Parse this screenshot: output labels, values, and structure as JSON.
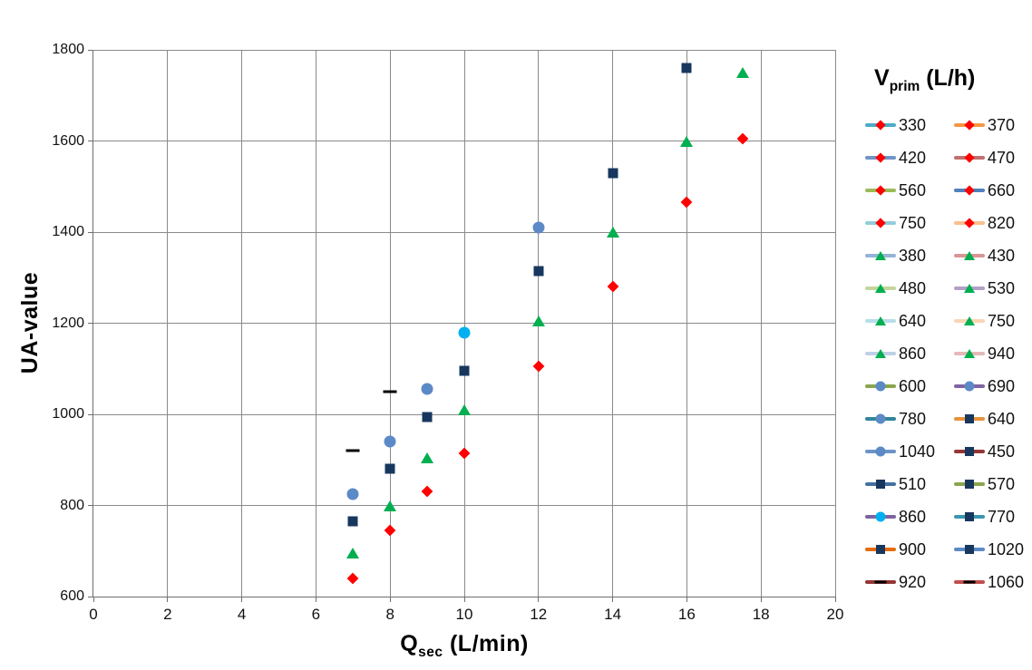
{
  "chart_data": {
    "type": "scatter",
    "title": "",
    "xlabel": "Qsec (L/min)",
    "xlabel_parts": {
      "base": "Q",
      "sub": "sec",
      "rest": " (L/min)"
    },
    "ylabel": "UA-value",
    "legend_title": "Vprim (L/h)",
    "legend_title_parts": {
      "base": "V",
      "sub": "prim",
      "rest": " (L/h)"
    },
    "xlim": [
      0,
      20
    ],
    "ylim": [
      600,
      1800
    ],
    "x_ticks": [
      0,
      2,
      4,
      6,
      8,
      10,
      12,
      14,
      16,
      18,
      20
    ],
    "y_ticks": [
      600,
      800,
      1000,
      1200,
      1400,
      1600,
      1800
    ],
    "grid": true,
    "legend_position": "right",
    "marker_colors": {
      "diamond": "#FE0000",
      "triangle": "#00AF50",
      "circle": "#5B8AC6",
      "circle_cyan": "#00B0F0",
      "square": "#17375E",
      "dash": "#000000"
    },
    "series": [
      {
        "name": "red-diamonds",
        "marker": "diamond",
        "color": "#FE0000",
        "points": [
          [
            7,
            640
          ],
          [
            8,
            745
          ],
          [
            9,
            830
          ],
          [
            10,
            915
          ],
          [
            12,
            1105
          ],
          [
            14,
            1280
          ],
          [
            16,
            1465
          ],
          [
            17.5,
            1605
          ]
        ]
      },
      {
        "name": "green-triangles",
        "marker": "triangle",
        "color": "#00AF50",
        "points": [
          [
            7,
            695
          ],
          [
            8,
            800
          ],
          [
            9,
            905
          ],
          [
            10,
            1010
          ],
          [
            12,
            1205
          ],
          [
            14,
            1400
          ],
          [
            16,
            1600
          ],
          [
            17.5,
            1750
          ]
        ]
      },
      {
        "name": "blue-circles",
        "marker": "circle",
        "color": "#5B8AC6",
        "points": [
          [
            7,
            825
          ],
          [
            8,
            940
          ],
          [
            9,
            1055
          ],
          [
            12,
            1410
          ]
        ]
      },
      {
        "name": "cyan-circle",
        "marker": "circle",
        "color": "#00B0F0",
        "points": [
          [
            10,
            1180
          ]
        ]
      },
      {
        "name": "navy-squares",
        "marker": "square",
        "color": "#17375E",
        "points": [
          [
            7,
            765
          ],
          [
            8,
            880
          ],
          [
            9,
            995
          ],
          [
            10,
            1095
          ],
          [
            12,
            1315
          ],
          [
            14,
            1530
          ],
          [
            16,
            1760
          ]
        ]
      },
      {
        "name": "black-dashes",
        "marker": "dash",
        "color": "#000000",
        "points": [
          [
            7,
            920
          ],
          [
            8,
            1050
          ]
        ]
      }
    ],
    "legend_entries": [
      {
        "label": "330",
        "marker": "diamond",
        "marker_color": "#FE0000",
        "line_color": "#4BACC6"
      },
      {
        "label": "370",
        "marker": "diamond",
        "marker_color": "#FE0000",
        "line_color": "#F79646"
      },
      {
        "label": "420",
        "marker": "diamond",
        "marker_color": "#FE0000",
        "line_color": "#7094C6"
      },
      {
        "label": "470",
        "marker": "diamond",
        "marker_color": "#FE0000",
        "line_color": "#C0706D"
      },
      {
        "label": "560",
        "marker": "diamond",
        "marker_color": "#FE0000",
        "line_color": "#9BBB59"
      },
      {
        "label": "660",
        "marker": "diamond",
        "marker_color": "#FE0000",
        "line_color": "#4F81BD"
      },
      {
        "label": "750",
        "marker": "diamond",
        "marker_color": "#FE0000",
        "line_color": "#92CDDC"
      },
      {
        "label": "820",
        "marker": "diamond",
        "marker_color": "#FE0000",
        "line_color": "#FAC08F"
      },
      {
        "label": "380",
        "marker": "triangle",
        "marker_color": "#00AF50",
        "line_color": "#95B3D7"
      },
      {
        "label": "430",
        "marker": "triangle",
        "marker_color": "#00AF50",
        "line_color": "#D99694"
      },
      {
        "label": "480",
        "marker": "triangle",
        "marker_color": "#00AF50",
        "line_color": "#C3D69B"
      },
      {
        "label": "530",
        "marker": "triangle",
        "marker_color": "#00AF50",
        "line_color": "#B2A1C7"
      },
      {
        "label": "640",
        "marker": "triangle",
        "marker_color": "#00AF50",
        "line_color": "#B7DEE8"
      },
      {
        "label": "750",
        "marker": "triangle",
        "marker_color": "#00AF50",
        "line_color": "#FCD5B5"
      },
      {
        "label": "860",
        "marker": "triangle",
        "marker_color": "#00AF50",
        "line_color": "#BFD0E7"
      },
      {
        "label": "940",
        "marker": "triangle",
        "marker_color": "#00AF50",
        "line_color": "#E5B9B7"
      },
      {
        "label": "600",
        "marker": "circle",
        "marker_color": "#5B8AC6",
        "line_color": "#89A54E"
      },
      {
        "label": "690",
        "marker": "circle",
        "marker_color": "#5B8AC6",
        "line_color": "#8064A2"
      },
      {
        "label": "780",
        "marker": "circle",
        "marker_color": "#5B8AC6",
        "line_color": "#31859C"
      },
      {
        "label": "640",
        "marker": "square",
        "marker_color": "#17375E",
        "line_color": "#E8913D"
      },
      {
        "label": "1040",
        "marker": "circle",
        "marker_color": "#5B8AC6",
        "line_color": "#6D94C6"
      },
      {
        "label": "450",
        "marker": "square",
        "marker_color": "#17375E",
        "line_color": "#943634"
      },
      {
        "label": "510",
        "marker": "square",
        "marker_color": "#17375E",
        "line_color": "#44719F"
      },
      {
        "label": "570",
        "marker": "square",
        "marker_color": "#17375E",
        "line_color": "#89A54E"
      },
      {
        "label": "860",
        "marker": "circle",
        "marker_color": "#00B0F0",
        "line_color": "#7C64A0"
      },
      {
        "label": "770",
        "marker": "square",
        "marker_color": "#17375E",
        "line_color": "#3C96AE"
      },
      {
        "label": "900",
        "marker": "square",
        "marker_color": "#17375E",
        "line_color": "#E46C0A"
      },
      {
        "label": "1020",
        "marker": "square",
        "marker_color": "#17375E",
        "line_color": "#5B8AC6"
      },
      {
        "label": "920",
        "marker": "dash",
        "marker_color": "#000000",
        "line_color": "#943634"
      },
      {
        "label": "1060",
        "marker": "dash",
        "marker_color": "#000000",
        "line_color": "#C0504D"
      }
    ]
  },
  "colors": {
    "background": "#FFFFFF",
    "gridline": "#8A8A8A",
    "axis_line": "#6E6E6E",
    "text": "#000000"
  }
}
